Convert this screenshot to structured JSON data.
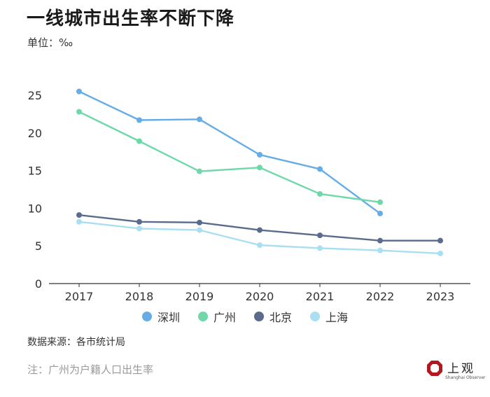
{
  "header": {
    "title": "一线城市出生率不断下降",
    "unit_label": "单位：‰"
  },
  "chart_data": {
    "type": "line",
    "x": [
      2017,
      2018,
      2019,
      2020,
      2021,
      2022,
      2023
    ],
    "ylim": [
      0,
      25
    ],
    "yticks": [
      0,
      5,
      10,
      15,
      20,
      25
    ],
    "grid": false,
    "legend_position": "bottom",
    "series": [
      {
        "name": "深圳",
        "color": "#66ade8",
        "values": [
          25.5,
          21.7,
          21.8,
          17.1,
          15.2,
          9.3,
          null
        ]
      },
      {
        "name": "广州",
        "color": "#6fd8a9",
        "values": [
          22.8,
          18.9,
          14.9,
          15.4,
          11.9,
          10.8,
          null
        ]
      },
      {
        "name": "北京",
        "color": "#5a6b8e",
        "values": [
          9.1,
          8.2,
          8.1,
          7.1,
          6.4,
          5.7,
          5.7
        ]
      },
      {
        "name": "上海",
        "color": "#a9def3",
        "values": [
          8.2,
          7.3,
          7.1,
          5.1,
          4.7,
          4.4,
          4.0
        ]
      }
    ]
  },
  "footer": {
    "source": "数据来源：各市统计局",
    "note": "注：广州为户籍人口出生率",
    "brand": {
      "name": "上观",
      "sub": "Shanghai Observer",
      "color": "#b5171e"
    }
  }
}
